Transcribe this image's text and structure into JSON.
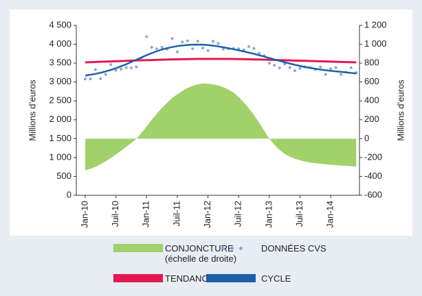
{
  "chart_data": {
    "type": "line",
    "ylabel": "Millions d’euros",
    "y2label": "Millions d’euros",
    "ylim": [
      0,
      4500
    ],
    "yticks": [
      0,
      500,
      {
        "value": 1000,
        "label": "1 000"
      },
      {
        "value": 1500,
        "label": "1 500"
      },
      {
        "value": 2000,
        "label": "2 000"
      },
      {
        "value": 2500,
        "label": "2 500"
      },
      {
        "value": 3000,
        "label": "3 000"
      },
      {
        "value": 3500,
        "label": "3 500"
      },
      {
        "value": 4000,
        "label": "4 000"
      },
      {
        "value": 4500,
        "label": "4 500"
      }
    ],
    "y2lim": [
      -600,
      1200
    ],
    "y2ticks": [
      -600,
      -400,
      -200,
      0,
      200,
      400,
      600,
      800,
      {
        "value": 1000,
        "label": "1 000"
      },
      {
        "value": 1200,
        "label": "1 200"
      }
    ],
    "grid": false,
    "categories": [
      "Jan-10",
      null,
      null,
      null,
      null,
      null,
      "Juil-10",
      null,
      null,
      null,
      null,
      null,
      "Jan-11",
      null,
      null,
      null,
      null,
      null,
      "Juil-11",
      null,
      null,
      null,
      null,
      null,
      "Jan-12",
      null,
      null,
      null,
      null,
      null,
      "Juil-12",
      null,
      null,
      null,
      null,
      null,
      "Jan-13",
      null,
      null,
      null,
      null,
      null,
      "Juil-13",
      null,
      null,
      null,
      null,
      null,
      "Jan-14",
      null,
      null,
      null,
      null,
      null
    ],
    "series": [
      {
        "name": "CONJONCTURE (échelle de droite)",
        "type": "area",
        "axis": "y2",
        "color": "#a2d06a",
        "values": [
          -335,
          -320,
          -300,
          -272,
          -240,
          -205,
          -167,
          -128,
          -88,
          -46,
          -3,
          60,
          130,
          200,
          265,
          325,
          380,
          430,
          470,
          505,
          535,
          560,
          575,
          585,
          582,
          575,
          563,
          545,
          520,
          488,
          440,
          385,
          320,
          250,
          170,
          85,
          0,
          -65,
          -120,
          -160,
          -190,
          -213,
          -230,
          -243,
          -253,
          -260,
          -266,
          -271,
          -276,
          -280,
          -284,
          -288,
          -292,
          -296
        ]
      },
      {
        "name": "DONNÉES CVS",
        "type": "scatter",
        "color": "#8aa5d6",
        "values": [
          3080,
          3080,
          3330,
          3090,
          3200,
          3460,
          3310,
          3340,
          3380,
          3370,
          3400,
          3640,
          4200,
          3920,
          3880,
          3920,
          3870,
          4150,
          3800,
          4060,
          4090,
          3880,
          4080,
          3900,
          3830,
          4080,
          4020,
          3870,
          3880,
          3890,
          3880,
          3850,
          3940,
          3890,
          3760,
          3700,
          3500,
          3440,
          3370,
          3480,
          3380,
          3300,
          3360,
          3400,
          3380,
          3330,
          3400,
          3200,
          3350,
          3380,
          3200,
          3260,
          3380,
          3250
        ]
      },
      {
        "name": "TENDANCE",
        "type": "line",
        "color": "#e3184d",
        "values": [
          3520,
          3525,
          3530,
          3535,
          3540,
          3545,
          3550,
          3555,
          3560,
          3565,
          3570,
          3574,
          3578,
          3582,
          3586,
          3590,
          3594,
          3597,
          3600,
          3603,
          3606,
          3608,
          3610,
          3611,
          3612,
          3612,
          3612,
          3611,
          3610,
          3608,
          3606,
          3604,
          3601,
          3598,
          3595,
          3592,
          3588,
          3584,
          3580,
          3576,
          3572,
          3568,
          3564,
          3560,
          3556,
          3552,
          3548,
          3544,
          3540,
          3536,
          3532,
          3528,
          3524,
          3520
        ]
      },
      {
        "name": "CYCLE",
        "type": "line",
        "color": "#1d5fa8",
        "values": [
          3170,
          3190,
          3215,
          3245,
          3280,
          3320,
          3365,
          3415,
          3470,
          3530,
          3590,
          3650,
          3710,
          3765,
          3815,
          3860,
          3895,
          3925,
          3950,
          3968,
          3980,
          3987,
          3990,
          3987,
          3978,
          3963,
          3943,
          3920,
          3895,
          3868,
          3840,
          3810,
          3778,
          3745,
          3710,
          3673,
          3635,
          3597,
          3560,
          3523,
          3488,
          3455,
          3425,
          3398,
          3373,
          3350,
          3330,
          3312,
          3296,
          3282,
          3268,
          3254,
          3240,
          3225
        ]
      }
    ]
  }
}
